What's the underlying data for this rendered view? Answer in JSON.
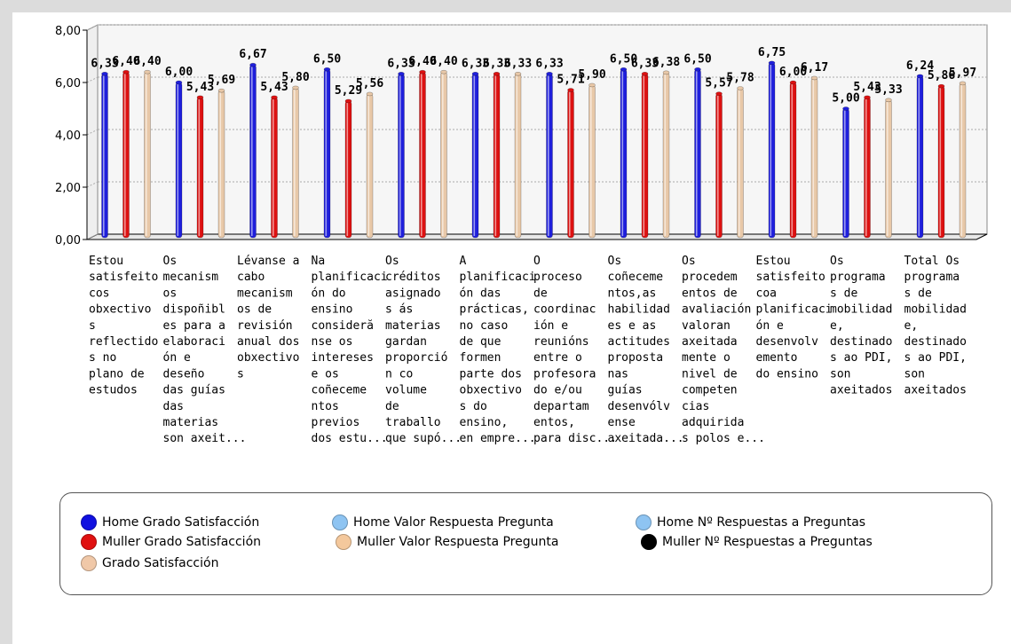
{
  "chart_data": {
    "type": "bar",
    "ylim": [
      0,
      8
    ],
    "yticks": [
      "0,00",
      "2,00",
      "4,00",
      "6,00",
      "8,00"
    ],
    "grid": true,
    "legend_position": "bottom",
    "categories": [
      "Estou satisfeito cos obxectivos reflectidos no plano de estudos",
      "Os mecanismos dispoñibles para a elaboración e deseño das guías das materias son axeit...",
      "Lévanse a cabo mecanismos de revisión anual dos obxectivos",
      "Na planificación do ensino considéranse os intereses e os coñecementos previos dos estu...",
      "Os créditos asignados ás materias gardan proporción co volume de traballo que supón",
      "A planificación das prácticas, no caso de que formen parte dos obxectivos do ensino, en empre...",
      "O proceso de coordinación e reunións entre o profesorado e/ou departamentos, para disc...",
      "Os coñecementos, as habilidades e as actitudes propostas nas guías desenvólvense axeitada...",
      "Os procedementos de avaliación valoran axeitadamente o nivel de competencias adquiridas polos e...",
      "Estou satisfeito coa planificación e desenvolvemento do ensino",
      "Os programas de mobilidade, destinados ao PDI, son axeitados",
      "Total Os programas de mobilidade, destinados ao PDI, son axeitados"
    ],
    "category_lines": [
      [
        "Estou",
        "satisfeito",
        "cos",
        "obxectivo",
        "s",
        "reflectido",
        "s no",
        "plano de",
        "estudos"
      ],
      [
        "Os",
        "mecanism",
        "os",
        "dispoñibl",
        "es para a",
        "elaboraci",
        "ón e",
        "deseño",
        "das guías",
        "das",
        "materias",
        "son axeit..."
      ],
      [
        "Lévanse a",
        "cabo",
        "mecanism",
        "os de",
        "revisión",
        "anual dos",
        "obxectivo",
        "s"
      ],
      [
        "Na",
        "planificaci",
        "ón do",
        "ensino",
        "consideră",
        "nse os",
        "intereses",
        "e os",
        "coñeceme",
        "ntos",
        "previos",
        "dos estu..."
      ],
      [
        "Os",
        "créditos",
        "asignado",
        "s ás",
        "materias",
        "gardan",
        "proporció",
        "n co",
        "volume",
        "de",
        "traballo",
        "que supó..."
      ],
      [
        "A",
        "planificaci",
        "ón das",
        "prácticas,",
        "no caso",
        "de que",
        "formen",
        "parte dos",
        "obxectivo",
        "s do",
        "ensino,",
        "en empre..."
      ],
      [
        "O",
        "proceso",
        "de",
        "coordinac",
        "ión e",
        "reunións",
        "entre o",
        "profesora",
        "do e/ou",
        "departam",
        "entos,",
        "para disc..."
      ],
      [
        "Os",
        "coñeceme",
        "ntos,as",
        "habilidad",
        "es e as",
        "actitudes",
        "proposta",
        "nas",
        "guías",
        "desenvólv",
        "ense",
        "axeitada..."
      ],
      [
        "Os",
        "procedem",
        "entos de",
        "avaliación",
        "valoran",
        "axeitada",
        "mente o",
        "nivel de",
        "competen",
        "cias",
        "adquirida",
        "s polos e..."
      ],
      [
        "Estou",
        "satisfeito",
        "coa",
        "planificaci",
        "ón e",
        "desenvolv",
        "emento",
        "do ensino"
      ],
      [
        "Os",
        "programa",
        "s de",
        "mobilidad",
        "e,",
        "destinado",
        "s ao PDI,",
        "son",
        "axeitados"
      ],
      [
        "Total Os",
        "programa",
        "s de",
        "mobilidad",
        "e,",
        "destinado",
        "s ao PDI,",
        "son",
        "axeitados"
      ]
    ],
    "series": [
      {
        "name": "Home Grado Satisfacción",
        "color": "#1f1fdc",
        "values": [
          6.33,
          6.0,
          6.67,
          6.5,
          6.33,
          6.33,
          6.33,
          6.5,
          6.5,
          6.75,
          5.0,
          6.24
        ],
        "labels": [
          "6,33",
          "6,00",
          "6,67",
          "6,50",
          "6,33",
          "6,33",
          "6,33",
          "6,50",
          "6,50",
          "6,75",
          "5,00",
          "6,24"
        ]
      },
      {
        "name": "Muller Grado Satisfacción",
        "color": "#dd1111",
        "values": [
          6.4,
          5.43,
          5.43,
          5.29,
          6.4,
          6.33,
          5.71,
          6.33,
          5.57,
          6.0,
          5.43,
          5.86
        ],
        "labels": [
          "6,40",
          "5,43",
          "5,43",
          "5,29",
          "6,40",
          "6,33",
          "5,71",
          "6,33",
          "5,57",
          "6,00",
          "5,43",
          "5,86"
        ]
      },
      {
        "name": "Grado Satisfacción",
        "color": "#e8c8a8",
        "values": [
          6.4,
          5.69,
          5.8,
          5.56,
          6.4,
          6.33,
          5.9,
          6.38,
          5.78,
          6.17,
          5.33,
          5.97
        ],
        "labels": [
          "6,40",
          "5,69",
          "5,80",
          "5,56",
          "6,40",
          "6,33",
          "5,90",
          "6,38",
          "5,78",
          "6,17",
          "5,33",
          "5,97"
        ]
      }
    ],
    "legend": [
      {
        "label": "Home Grado Satisfacción",
        "color": "#1010e0"
      },
      {
        "label": "Home Valor Respuesta Pregunta",
        "color": "#8ec4f2"
      },
      {
        "label": "Home Nº Respuestas a Preguntas",
        "color": "#8ec4f2"
      },
      {
        "label": "Muller Grado Satisfacción",
        "color": "#e01010"
      },
      {
        "label": "Muller Valor Respuesta Pregunta",
        "color": "#f4c89c"
      },
      {
        "label": "Muller Nº Respuestas a Preguntas",
        "color": "#000000"
      },
      {
        "label": "Grado Satisfacción",
        "color": "#f0c8a8"
      }
    ]
  }
}
